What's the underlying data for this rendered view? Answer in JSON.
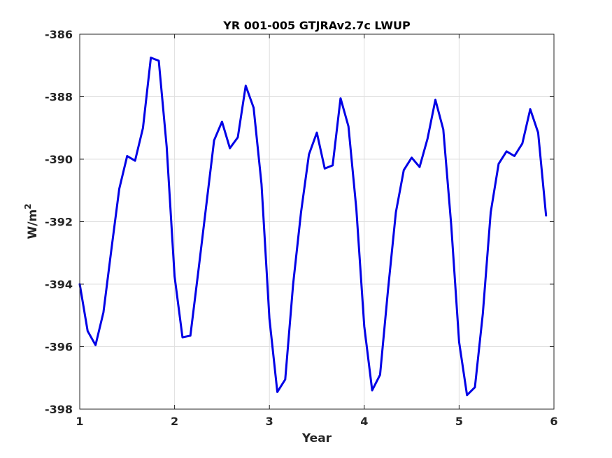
{
  "chart_data": {
    "type": "line",
    "title": "YR 001-005 GTJRAv2.7c LWUP",
    "xlabel": "Year",
    "ylabel": "W/m",
    "ylabel_superscript": "2",
    "xlim": [
      1,
      6
    ],
    "ylim": [
      -398,
      -386
    ],
    "xticks": [
      1,
      2,
      3,
      4,
      5,
      6
    ],
    "xtick_labels": [
      "1",
      "2",
      "3",
      "4",
      "5",
      "6"
    ],
    "yticks": [
      -398,
      -396,
      -394,
      -392,
      -390,
      -388,
      -386
    ],
    "ytick_labels": [
      "-398",
      "-396",
      "-394",
      "-392",
      "-390",
      "-388",
      "-386"
    ],
    "grid": true,
    "series": [
      {
        "color": "#0000e6",
        "x": [
          1.0,
          1.083,
          1.167,
          1.25,
          1.333,
          1.417,
          1.5,
          1.583,
          1.667,
          1.75,
          1.833,
          1.917,
          2.0,
          2.083,
          2.167,
          2.25,
          2.333,
          2.417,
          2.5,
          2.583,
          2.667,
          2.75,
          2.833,
          2.917,
          3.0,
          3.083,
          3.167,
          3.25,
          3.333,
          3.417,
          3.5,
          3.583,
          3.667,
          3.75,
          3.833,
          3.917,
          4.0,
          4.083,
          4.167,
          4.25,
          4.333,
          4.417,
          4.5,
          4.583,
          4.667,
          4.75,
          4.833,
          4.917,
          5.0,
          5.083,
          5.167,
          5.25,
          5.333,
          5.417,
          5.5,
          5.583,
          5.667,
          5.75,
          5.833,
          5.917
        ],
        "y": [
          -394.0,
          -395.5,
          -395.95,
          -394.9,
          -392.9,
          -390.95,
          -389.9,
          -390.05,
          -389.0,
          -386.75,
          -386.85,
          -389.6,
          -393.75,
          -395.7,
          -395.65,
          -393.6,
          -391.5,
          -389.4,
          -388.8,
          -389.65,
          -389.3,
          -387.65,
          -388.35,
          -390.8,
          -395.1,
          -397.45,
          -397.05,
          -394.0,
          -391.7,
          -389.85,
          -389.15,
          -390.3,
          -390.2,
          -388.05,
          -388.95,
          -391.6,
          -395.35,
          -397.4,
          -396.9,
          -394.2,
          -391.7,
          -390.35,
          -389.95,
          -390.25,
          -389.35,
          -388.1,
          -389.05,
          -392.1,
          -395.85,
          -397.55,
          -397.3,
          -394.95,
          -391.7,
          -390.15,
          -389.75,
          -389.9,
          -389.5,
          -388.4,
          -389.15,
          -391.8
        ]
      }
    ]
  }
}
